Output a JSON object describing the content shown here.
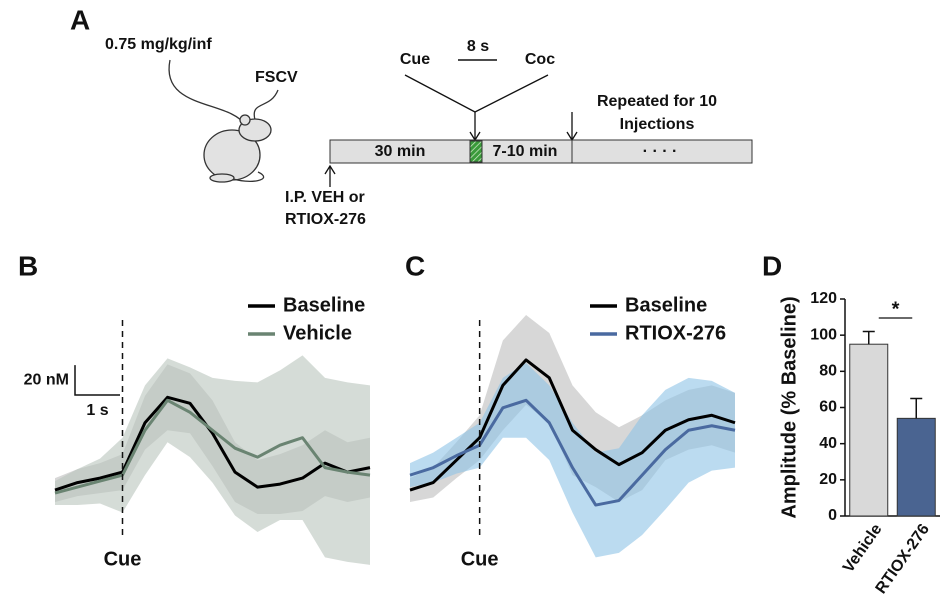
{
  "panel_a": {
    "label": "A",
    "dose": "0.75 mg/kg/inf",
    "probe": "FSCV",
    "cue": "Cue",
    "interval": "8 s",
    "coc": "Coc",
    "repeat": [
      "Repeated for 10",
      "Injections"
    ],
    "phase1": "30 min",
    "phase2": "7-10 min",
    "dots": "· · · ·",
    "injection": [
      "I.P. VEH or",
      "RTIOX-276"
    ]
  },
  "chart_data": [
    {
      "type": "line",
      "panel": "B",
      "x": [
        -1.5,
        -1,
        -0.5,
        0,
        0.5,
        1,
        1.5,
        2,
        2.5,
        3,
        3.5,
        4,
        4.5,
        5,
        5.5
      ],
      "xlim": [
        -1.5,
        5.5
      ],
      "ylim": [
        -10,
        117
      ],
      "cue": {
        "x": 0,
        "label": "Cue"
      },
      "scale_bar": {
        "x_size": 1,
        "x_label": "1 s",
        "y_size": 20,
        "y_label": "20 nM"
      },
      "series": [
        {
          "name": "Baseline",
          "color": "#000000",
          "band_color": "#bdbdbd",
          "values": [
            10,
            15,
            18,
            22,
            55,
            72,
            68,
            48,
            22,
            12,
            14,
            18,
            28,
            22,
            25
          ],
          "errors": [
            8,
            9,
            10,
            12,
            18,
            22,
            20,
            22,
            20,
            18,
            20,
            22,
            22,
            20,
            20
          ]
        },
        {
          "name": "Vehicle",
          "color": "#6a8472",
          "band_color": "#b9c4bc",
          "values": [
            8,
            12,
            16,
            20,
            50,
            70,
            62,
            50,
            38,
            32,
            40,
            45,
            25,
            22,
            20
          ],
          "errors": [
            8,
            12,
            15,
            25,
            30,
            28,
            30,
            35,
            45,
            50,
            50,
            55,
            60,
            60,
            60
          ]
        }
      ]
    },
    {
      "type": "line",
      "panel": "C",
      "x": [
        -1.5,
        -1,
        -0.5,
        0,
        0.5,
        1,
        1.5,
        2,
        2.5,
        3,
        3.5,
        4,
        4.5,
        5,
        5.5
      ],
      "xlim": [
        -1.5,
        5.5
      ],
      "ylim": [
        -35,
        92
      ],
      "cue": {
        "x": 0,
        "label": "Cue"
      },
      "series": [
        {
          "name": "Baseline",
          "color": "#000000",
          "band_color": "#bdbdbd",
          "values": [
            -15,
            -10,
            5,
            20,
            55,
            72,
            60,
            25,
            12,
            2,
            10,
            25,
            32,
            35,
            30
          ],
          "errors": [
            8,
            10,
            12,
            15,
            30,
            30,
            30,
            30,
            25,
            25,
            25,
            20,
            20,
            20,
            20
          ]
        },
        {
          "name": "RTIOX-276",
          "color": "#4a6aa0",
          "band_color": "#8ec3e6",
          "values": [
            -5,
            0,
            8,
            15,
            40,
            45,
            30,
            0,
            -25,
            -22,
            -5,
            12,
            25,
            28,
            25
          ],
          "errors": [
            8,
            10,
            12,
            15,
            20,
            25,
            25,
            30,
            35,
            35,
            40,
            40,
            35,
            30,
            25
          ]
        }
      ]
    },
    {
      "type": "bar",
      "panel": "D",
      "y_label": "Amplitude (% Baseline)",
      "categories": [
        "Vehicle",
        "RTIOX-276"
      ],
      "values": [
        95,
        54
      ],
      "errors": [
        7,
        11
      ],
      "colors": [
        "#d9d9d9",
        "#4a6491"
      ],
      "ylim": [
        0,
        120
      ],
      "yticks": [
        0,
        20,
        40,
        60,
        80,
        100,
        120
      ],
      "significance": "*"
    }
  ]
}
